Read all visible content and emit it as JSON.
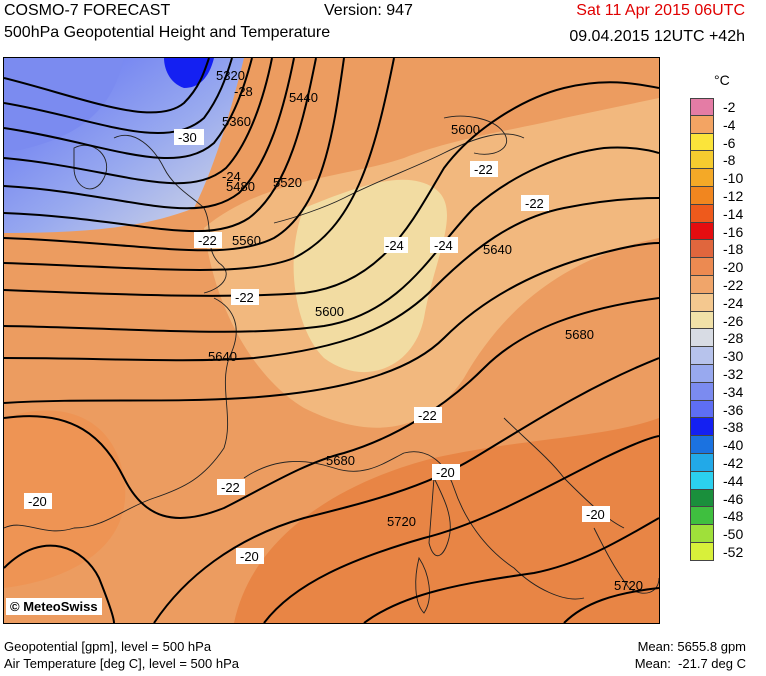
{
  "header": {
    "model": "COSMO-7 FORECAST",
    "subtitle": "500hPa Geopotential Height and Temperature",
    "version": "Version: 947",
    "valid_time": "Sat 11 Apr 2015 06UTC",
    "run_time": "09.04.2015 12UTC +42h"
  },
  "colors": {
    "valid_time": "#e00000",
    "contour": "#000000",
    "sea_outline": "#222222"
  },
  "legend": {
    "unit": "°C",
    "entries": [
      {
        "label": "-2",
        "color": "#e47ca5"
      },
      {
        "label": "-4",
        "color": "#f3a463"
      },
      {
        "label": "-6",
        "color": "#fbe43a"
      },
      {
        "label": "-8",
        "color": "#f6cc2f"
      },
      {
        "label": "-10",
        "color": "#f4a927"
      },
      {
        "label": "-12",
        "color": "#f1861f"
      },
      {
        "label": "-14",
        "color": "#ee5a1c"
      },
      {
        "label": "-16",
        "color": "#e50d10"
      },
      {
        "label": "-18",
        "color": "#e0663d"
      },
      {
        "label": "-20",
        "color": "#ec8a51"
      },
      {
        "label": "-22",
        "color": "#f0a56a"
      },
      {
        "label": "-24",
        "color": "#f4c88f"
      },
      {
        "label": "-26",
        "color": "#f1e1a8"
      },
      {
        "label": "-28",
        "color": "#d8dce4"
      },
      {
        "label": "-30",
        "color": "#b7c3ec"
      },
      {
        "label": "-32",
        "color": "#98a9ef"
      },
      {
        "label": "-34",
        "color": "#7b8bf0"
      },
      {
        "label": "-36",
        "color": "#5e6ef4"
      },
      {
        "label": "-38",
        "color": "#1420f2"
      },
      {
        "label": "-40",
        "color": "#1b72e0"
      },
      {
        "label": "-42",
        "color": "#22a9e8"
      },
      {
        "label": "-44",
        "color": "#2bd0ef"
      },
      {
        "label": "-46",
        "color": "#1a8f3c"
      },
      {
        "label": "-48",
        "color": "#3fbf3f"
      },
      {
        "label": "-50",
        "color": "#9fe03a"
      },
      {
        "label": "-52",
        "color": "#d8f03a"
      }
    ]
  },
  "map": {
    "contour_labels": [
      "5320",
      "-28",
      "5440",
      "5360",
      "-30",
      "-24",
      "5480",
      "5520",
      "-22",
      "5560",
      "-22",
      "5600",
      "5640",
      "5600",
      "-22",
      "-22",
      "-24",
      "-24",
      "5640",
      "5680",
      "-22",
      "5680",
      "-20",
      "-22",
      "-20",
      "5720",
      "-20",
      "-20",
      "5720"
    ],
    "copyright": "© MeteoSwiss"
  },
  "footer": {
    "geo_line": "Geopotential [gpm], level = 500 hPa",
    "temp_line": "Air Temperature [deg C], level = 500 hPa",
    "mean_geo": "Mean: 5655.8 gpm",
    "mean_temp": "Mean:  -21.7 deg C"
  }
}
